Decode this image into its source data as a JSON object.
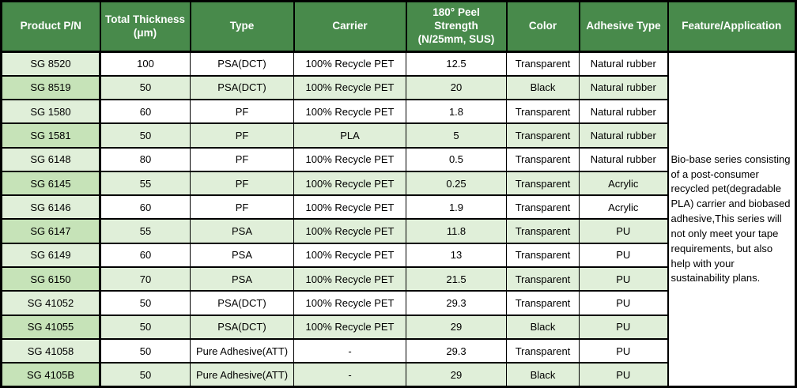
{
  "colors": {
    "header_bg": "#488a4b",
    "header_text": "#ffffff",
    "row_tint_light": "#e0efd9",
    "row_tint_medium": "#c6e3b8",
    "border": "#000000"
  },
  "table": {
    "headers": [
      "Product P/N",
      "Total Thickness\n(μm)",
      "Type",
      "Carrier",
      "180° Peel\nStrength\n(N/25mm, SUS)",
      "Color",
      "Adhesive Type",
      "Feature/Application"
    ],
    "rows": [
      [
        "SG 8520",
        "100",
        "PSA(DCT)",
        "100% Recycle PET",
        "12.5",
        "Transparent",
        "Natural rubber"
      ],
      [
        "SG 8519",
        "50",
        "PSA(DCT)",
        "100% Recycle PET",
        "20",
        "Black",
        "Natural rubber"
      ],
      [
        "SG 1580",
        "60",
        "PF",
        "100% Recycle PET",
        "1.8",
        "Transparent",
        "Natural rubber"
      ],
      [
        "SG 1581",
        "50",
        "PF",
        "PLA",
        "5",
        "Transparent",
        "Natural rubber"
      ],
      [
        "SG 6148",
        "80",
        "PF",
        "100% Recycle PET",
        "0.5",
        "Transparent",
        "Natural rubber"
      ],
      [
        "SG 6145",
        "55",
        "PF",
        "100% Recycle PET",
        "0.25",
        "Transparent",
        "Acrylic"
      ],
      [
        "SG 6146",
        "60",
        "PF",
        "100% Recycle PET",
        "1.9",
        "Transparent",
        "Acrylic"
      ],
      [
        "SG 6147",
        "55",
        "PSA",
        "100% Recycle PET",
        "11.8",
        "Transparent",
        "PU"
      ],
      [
        "SG 6149",
        "60",
        "PSA",
        "100% Recycle PET",
        "13",
        "Transparent",
        "PU"
      ],
      [
        "SG 6150",
        "70",
        "PSA",
        "100% Recycle PET",
        "21.5",
        "Transparent",
        "PU"
      ],
      [
        "SG 41052",
        "50",
        "PSA(DCT)",
        "100% Recycle PET",
        "29.3",
        "Transparent",
        "PU"
      ],
      [
        "SG 41055",
        "50",
        "PSA(DCT)",
        "100% Recycle PET",
        "29",
        "Black",
        "PU"
      ],
      [
        "SG 41058",
        "50",
        "Pure Adhesive(ATT)",
        "-",
        "29.3",
        "Transparent",
        "PU"
      ],
      [
        "SG 4105B",
        "50",
        "Pure Adhesive(ATT)",
        "-",
        "29",
        "Black",
        "PU"
      ]
    ],
    "feature_text": "Bio-base series consisting of a post-consumer recycled pet(degradable PLA) carrier and  biobased adhesive,This series will not only meet your tape requirements, but also help with your sustainability plans."
  }
}
